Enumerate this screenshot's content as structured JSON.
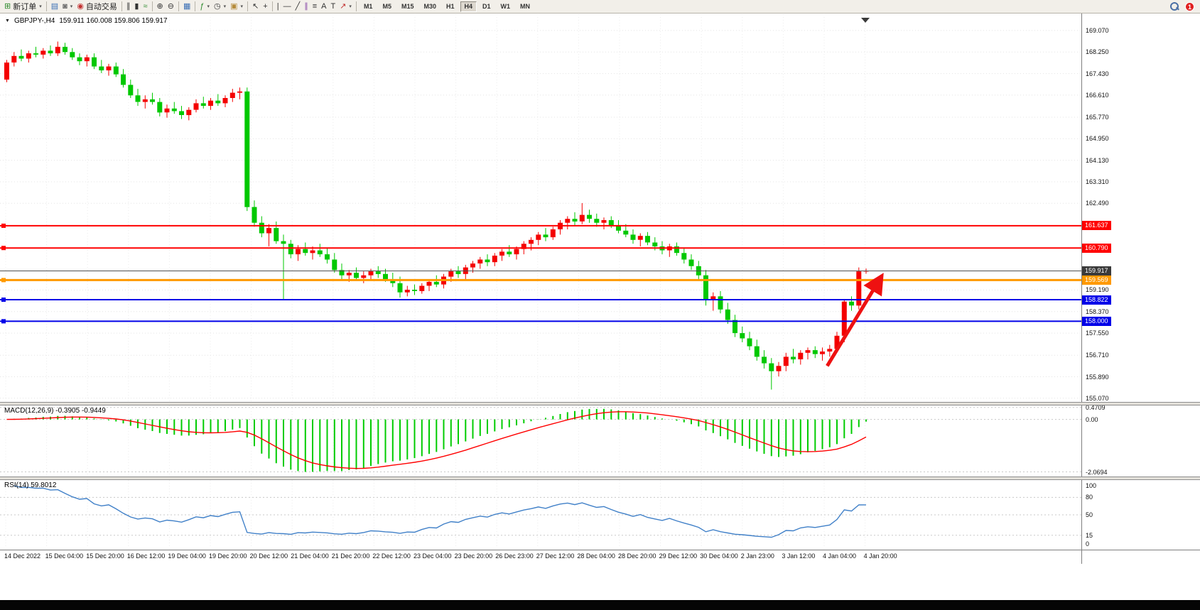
{
  "toolbar": {
    "caret": "▾",
    "groups": [
      {
        "name": "trade",
        "items": [
          {
            "name": "new-order-button",
            "glyph": "⊞",
            "color": "#2e8b2e",
            "label": "新订单",
            "caret": true
          }
        ]
      },
      {
        "name": "windows",
        "items": [
          {
            "name": "charts-grid-button",
            "glyph": "▤",
            "color": "#3b6fb5"
          },
          {
            "name": "profiles-button",
            "glyph": "◙",
            "color": "#6a6a6a",
            "caret": true
          },
          {
            "name": "auto-trading-button",
            "glyph": "◉",
            "color": "#c23030",
            "label": "自动交易"
          }
        ]
      },
      {
        "name": "chart-type",
        "items": [
          {
            "name": "bar-chart-button",
            "glyph": "∥",
            "color": "#333333"
          },
          {
            "name": "candlestick-chart-button",
            "glyph": "▮",
            "color": "#333333"
          },
          {
            "name": "line-chart-button",
            "glyph": "≈",
            "color": "#2e8b2e"
          }
        ]
      },
      {
        "name": "zoom",
        "items": [
          {
            "name": "zoom-in-button",
            "glyph": "⊕",
            "color": "#333333"
          },
          {
            "name": "zoom-out-button",
            "glyph": "⊖",
            "color": "#333333"
          }
        ]
      },
      {
        "name": "arrange",
        "items": [
          {
            "name": "tile-windows-button",
            "glyph": "▦",
            "color": "#3b6fb5"
          }
        ]
      },
      {
        "name": "tools",
        "items": [
          {
            "name": "indicators-button",
            "glyph": "ƒ",
            "color": "#2e8b2e",
            "caret": true
          },
          {
            "name": "periods-button",
            "glyph": "◷",
            "color": "#333333",
            "caret": true
          },
          {
            "name": "templates-button",
            "glyph": "▣",
            "color": "#b58b3b",
            "caret": true
          }
        ]
      },
      {
        "name": "cursor",
        "items": [
          {
            "name": "cursor-button",
            "glyph": "↖",
            "color": "#333333"
          },
          {
            "name": "crosshair-button",
            "glyph": "+",
            "color": "#333333"
          }
        ]
      },
      {
        "name": "line-studies",
        "items": [
          {
            "name": "vertical-line-button",
            "glyph": "|",
            "color": "#333333"
          },
          {
            "name": "horizontal-line-button",
            "glyph": "—",
            "color": "#333333"
          },
          {
            "name": "trendline-button",
            "glyph": "╱",
            "color": "#333333"
          },
          {
            "name": "equidistant-channel-button",
            "glyph": "∥",
            "color": "#8a4ca8"
          },
          {
            "name": "fibonacci-button",
            "glyph": "≡",
            "color": "#333333"
          },
          {
            "name": "text-button",
            "glyph": "A",
            "color": "#333333"
          },
          {
            "name": "label-button",
            "glyph": "T",
            "color": "#333333"
          },
          {
            "name": "arrows-button",
            "glyph": "↗",
            "color": "#c23030",
            "caret": true
          }
        ]
      }
    ],
    "timeframes": {
      "items": [
        "M1",
        "M5",
        "M15",
        "M30",
        "H1",
        "H4",
        "D1",
        "W1",
        "MN"
      ],
      "active": "H4"
    },
    "right": {
      "badge": "1"
    }
  },
  "chart": {
    "icons": {
      "menu_arrow": "▼"
    },
    "title_symbol": "GBPJPY-,H4",
    "title_ohlc": "159.911 160.008 159.806 159.917"
  },
  "price_axis": {
    "labels": [
      {
        "text": "169.070",
        "p": 169.07
      },
      {
        "text": "168.250",
        "p": 168.25
      },
      {
        "text": "167.430",
        "p": 167.43
      },
      {
        "text": "166.610",
        "p": 166.61
      },
      {
        "text": "165.770",
        "p": 165.77
      },
      {
        "text": "164.950",
        "p": 164.95
      },
      {
        "text": "164.130",
        "p": 164.13
      },
      {
        "text": "163.310",
        "p": 163.31
      },
      {
        "text": "162.490",
        "p": 162.49
      },
      {
        "text": "159.190",
        "p": 159.19
      },
      {
        "text": "158.370",
        "p": 158.37
      },
      {
        "text": "157.550",
        "p": 157.55
      },
      {
        "text": "156.710",
        "p": 156.71
      },
      {
        "text": "155.890",
        "p": 155.89
      },
      {
        "text": "155.070",
        "p": 155.07
      }
    ],
    "tags": [
      {
        "text": "161.637",
        "p": 161.637,
        "bg": "#FF0000"
      },
      {
        "text": "160.790",
        "p": 160.79,
        "bg": "#FF0000"
      },
      {
        "text": "159.917",
        "p": 159.917,
        "bg": "#3a3a3a"
      },
      {
        "text": "159.569",
        "p": 159.569,
        "bg": "#FF9900"
      },
      {
        "text": "158.822",
        "p": 158.822,
        "bg": "#0000E8"
      },
      {
        "text": "158.000",
        "p": 158.0,
        "bg": "#0000E8"
      }
    ]
  },
  "time_axis": {
    "labels": [
      "14 Dec 2022",
      "15 Dec 04:00",
      "15 Dec 20:00",
      "16 Dec 12:00",
      "19 Dec 04:00",
      "19 Dec 20:00",
      "20 Dec 12:00",
      "21 Dec 04:00",
      "21 Dec 20:00",
      "22 Dec 12:00",
      "23 Dec 04:00",
      "23 Dec 20:00",
      "26 Dec 23:00",
      "27 Dec 12:00",
      "28 Dec 04:00",
      "28 Dec 20:00",
      "29 Dec 12:00",
      "30 Dec 04:00",
      "2 Jan 23:00",
      "3 Jan 12:00",
      "4 Jan 04:00",
      "4 Jan 20:00"
    ]
  },
  "macd_panel": {
    "label": "MACD(12,26,9) -0.3905 -0.9449",
    "axis": [
      {
        "text": "0.4709",
        "v": 0.4709
      },
      {
        "text": "0.00",
        "v": 0
      },
      {
        "text": "-2.0694",
        "v": -2.0694
      }
    ],
    "range": [
      -2.25,
      0.55
    ]
  },
  "rsi_panel": {
    "label": "RSI(14) 59.8012",
    "axis": [
      {
        "text": "100",
        "v": 100
      },
      {
        "text": "80",
        "v": 80
      },
      {
        "text": "50",
        "v": 50
      },
      {
        "text": "15",
        "v": 15
      },
      {
        "text": "0",
        "v": 0
      }
    ],
    "levels": [
      80,
      50,
      15
    ]
  },
  "chart_data": {
    "type": "candlestick",
    "symbol": "GBPJPY",
    "period": "H4",
    "ylim": [
      154.93,
      169.69
    ],
    "colors": {
      "up": "#F40000",
      "down": "#00C800",
      "macd_hist": "#00CC00",
      "macd_signal": "#FF0000",
      "rsi": "#4080C8"
    },
    "levels": [
      {
        "price": 161.637,
        "color": "#FF0000",
        "w": 2,
        "marker": true
      },
      {
        "price": 160.79,
        "color": "#FF0000",
        "w": 2,
        "marker": true
      },
      {
        "price": 159.917,
        "color": "#505050",
        "w": 1,
        "marker": false
      },
      {
        "price": 159.569,
        "color": "#FF9900",
        "w": 3,
        "marker": true
      },
      {
        "price": 158.822,
        "color": "#0000E8",
        "w": 2,
        "marker": true
      },
      {
        "price": 158.0,
        "color": "#0000E8",
        "w": 2,
        "marker": true
      }
    ],
    "annotations": [
      {
        "type": "arrow",
        "color": "#EE1111",
        "width": 5,
        "from": {
          "i": 113,
          "p": 156.3
        },
        "to": {
          "i": 120,
          "p": 159.5
        }
      }
    ],
    "indicators": [
      {
        "type": "MACD",
        "params": [
          12,
          26,
          9
        ],
        "display": "-0.3905 -0.9449"
      },
      {
        "type": "RSI",
        "params": [
          14
        ],
        "display": "59.8012"
      }
    ],
    "candles": [
      [
        167.2,
        167.95,
        167.1,
        167.85
      ],
      [
        167.85,
        168.25,
        167.7,
        168.1
      ],
      [
        168.1,
        168.35,
        167.9,
        168.0
      ],
      [
        168.0,
        168.3,
        167.85,
        168.2
      ],
      [
        168.2,
        168.45,
        168.05,
        168.15
      ],
      [
        168.15,
        168.4,
        168.0,
        168.3
      ],
      [
        168.3,
        168.5,
        168.1,
        168.2
      ],
      [
        168.2,
        168.65,
        168.1,
        168.45
      ],
      [
        168.45,
        168.6,
        168.15,
        168.25
      ],
      [
        168.25,
        168.4,
        167.95,
        168.05
      ],
      [
        168.05,
        168.2,
        167.75,
        167.9
      ],
      [
        167.9,
        168.15,
        167.7,
        168.05
      ],
      [
        168.05,
        168.2,
        167.6,
        167.7
      ],
      [
        167.7,
        167.95,
        167.45,
        167.55
      ],
      [
        167.55,
        167.8,
        167.35,
        167.7
      ],
      [
        167.7,
        167.85,
        167.3,
        167.4
      ],
      [
        167.4,
        167.6,
        166.9,
        167.0
      ],
      [
        167.0,
        167.2,
        166.5,
        166.6
      ],
      [
        166.6,
        166.85,
        166.2,
        166.35
      ],
      [
        166.35,
        166.6,
        166.1,
        166.45
      ],
      [
        166.45,
        166.7,
        166.25,
        166.35
      ],
      [
        166.35,
        166.5,
        165.8,
        165.95
      ],
      [
        165.95,
        166.25,
        165.75,
        166.1
      ],
      [
        166.1,
        166.35,
        165.9,
        166.0
      ],
      [
        166.0,
        166.2,
        165.7,
        165.85
      ],
      [
        165.85,
        166.15,
        165.65,
        166.05
      ],
      [
        166.05,
        166.45,
        165.95,
        166.3
      ],
      [
        166.3,
        166.55,
        166.1,
        166.2
      ],
      [
        166.2,
        166.5,
        166.05,
        166.4
      ],
      [
        166.4,
        166.65,
        166.2,
        166.3
      ],
      [
        166.3,
        166.6,
        166.15,
        166.5
      ],
      [
        166.5,
        166.85,
        166.35,
        166.7
      ],
      [
        166.7,
        166.9,
        166.45,
        166.75
      ],
      [
        166.75,
        166.9,
        162.2,
        162.35
      ],
      [
        162.35,
        162.6,
        161.6,
        161.75
      ],
      [
        161.75,
        162.0,
        161.2,
        161.35
      ],
      [
        161.35,
        161.7,
        160.85,
        161.55
      ],
      [
        161.55,
        161.8,
        160.95,
        161.05
      ],
      [
        161.05,
        161.3,
        158.8,
        160.95
      ],
      [
        160.95,
        161.1,
        160.4,
        160.55
      ],
      [
        160.55,
        160.9,
        160.3,
        160.75
      ],
      [
        160.75,
        161.0,
        160.5,
        160.6
      ],
      [
        160.6,
        160.85,
        160.35,
        160.7
      ],
      [
        160.7,
        160.95,
        160.45,
        160.55
      ],
      [
        160.55,
        160.8,
        160.2,
        160.35
      ],
      [
        160.35,
        160.6,
        159.85,
        159.95
      ],
      [
        159.95,
        160.2,
        159.6,
        159.75
      ],
      [
        159.75,
        159.95,
        159.5,
        159.85
      ],
      [
        159.85,
        160.05,
        159.55,
        159.65
      ],
      [
        159.65,
        159.9,
        159.45,
        159.75
      ],
      [
        159.75,
        160.0,
        159.55,
        159.9
      ],
      [
        159.9,
        160.1,
        159.65,
        159.8
      ],
      [
        159.8,
        160.0,
        159.5,
        159.6
      ],
      [
        159.6,
        159.85,
        159.3,
        159.45
      ],
      [
        159.45,
        159.7,
        158.9,
        159.1
      ],
      [
        159.1,
        159.35,
        158.95,
        159.2
      ],
      [
        159.2,
        159.4,
        159.0,
        159.15
      ],
      [
        159.15,
        159.45,
        159.05,
        159.35
      ],
      [
        159.35,
        159.6,
        159.15,
        159.5
      ],
      [
        159.5,
        159.75,
        159.3,
        159.4
      ],
      [
        159.4,
        159.8,
        159.25,
        159.7
      ],
      [
        159.7,
        160.0,
        159.5,
        159.9
      ],
      [
        159.9,
        160.1,
        159.65,
        159.8
      ],
      [
        159.8,
        160.15,
        159.6,
        160.05
      ],
      [
        160.05,
        160.3,
        159.85,
        160.2
      ],
      [
        160.2,
        160.45,
        160.0,
        160.35
      ],
      [
        160.35,
        160.55,
        160.1,
        160.25
      ],
      [
        160.25,
        160.6,
        160.1,
        160.5
      ],
      [
        160.5,
        160.75,
        160.3,
        160.65
      ],
      [
        160.65,
        160.9,
        160.45,
        160.55
      ],
      [
        160.55,
        160.85,
        160.35,
        160.75
      ],
      [
        160.75,
        161.05,
        160.55,
        160.95
      ],
      [
        160.95,
        161.2,
        160.7,
        161.1
      ],
      [
        161.1,
        161.4,
        160.9,
        161.3
      ],
      [
        161.3,
        161.55,
        161.05,
        161.2
      ],
      [
        161.2,
        161.6,
        161.1,
        161.5
      ],
      [
        161.5,
        161.85,
        161.3,
        161.75
      ],
      [
        161.75,
        162.0,
        161.5,
        161.9
      ],
      [
        161.9,
        162.15,
        161.65,
        161.8
      ],
      [
        161.8,
        162.5,
        161.7,
        162.05
      ],
      [
        162.05,
        162.25,
        161.75,
        161.9
      ],
      [
        161.9,
        162.1,
        161.6,
        161.75
      ],
      [
        161.75,
        161.95,
        161.5,
        161.85
      ],
      [
        161.85,
        162.0,
        161.55,
        161.65
      ],
      [
        161.65,
        161.85,
        161.35,
        161.45
      ],
      [
        161.45,
        161.7,
        161.2,
        161.3
      ],
      [
        161.3,
        161.5,
        160.95,
        161.1
      ],
      [
        161.1,
        161.35,
        160.85,
        161.25
      ],
      [
        161.25,
        161.4,
        160.9,
        161.0
      ],
      [
        161.0,
        161.2,
        160.7,
        160.85
      ],
      [
        160.85,
        161.05,
        160.55,
        160.7
      ],
      [
        160.7,
        160.95,
        160.45,
        160.85
      ],
      [
        160.85,
        161.0,
        160.5,
        160.6
      ],
      [
        160.6,
        160.8,
        160.2,
        160.35
      ],
      [
        160.35,
        160.55,
        159.95,
        160.1
      ],
      [
        160.1,
        160.3,
        159.6,
        159.75
      ],
      [
        159.75,
        159.95,
        158.6,
        158.8
      ],
      [
        158.8,
        159.1,
        158.4,
        158.95
      ],
      [
        158.95,
        159.15,
        158.3,
        158.45
      ],
      [
        158.45,
        158.7,
        157.9,
        158.05
      ],
      [
        158.05,
        158.25,
        157.4,
        157.55
      ],
      [
        157.55,
        157.8,
        157.2,
        157.35
      ],
      [
        157.35,
        157.6,
        156.9,
        157.05
      ],
      [
        157.05,
        157.3,
        156.5,
        156.65
      ],
      [
        156.65,
        156.9,
        156.2,
        156.4
      ],
      [
        156.4,
        156.6,
        155.4,
        156.1
      ],
      [
        156.1,
        156.45,
        155.9,
        156.3
      ],
      [
        156.3,
        156.8,
        156.1,
        156.65
      ],
      [
        156.65,
        156.95,
        156.4,
        156.55
      ],
      [
        156.55,
        156.9,
        156.35,
        156.8
      ],
      [
        156.8,
        157.0,
        156.55,
        156.9
      ],
      [
        156.9,
        157.05,
        156.6,
        156.75
      ],
      [
        156.75,
        157.0,
        156.5,
        156.85
      ],
      [
        156.85,
        157.1,
        156.65,
        156.95
      ],
      [
        156.95,
        157.6,
        156.8,
        157.45
      ],
      [
        157.45,
        158.85,
        157.2,
        158.75
      ],
      [
        158.75,
        158.95,
        158.4,
        158.6
      ],
      [
        158.6,
        160.05,
        158.45,
        159.9
      ],
      [
        159.91,
        160.01,
        159.81,
        159.92
      ]
    ]
  }
}
